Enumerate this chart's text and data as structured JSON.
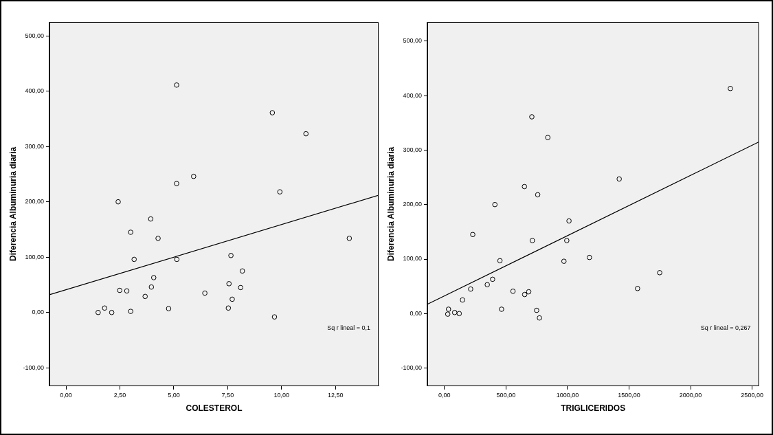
{
  "chart_data": [
    {
      "type": "scatter",
      "xlabel": "COLESTEROL",
      "ylabel": "Diferencia Albuminuria diaria",
      "xlim": [
        -0.77,
        14.5
      ],
      "ylim": [
        -133,
        525
      ],
      "xticks": [
        {
          "value": 0,
          "label": "0,00"
        },
        {
          "value": 2.5,
          "label": "2,50"
        },
        {
          "value": 5,
          "label": "5,00"
        },
        {
          "value": 7.5,
          "label": "7,50"
        },
        {
          "value": 10,
          "label": "10,00"
        },
        {
          "value": 12.5,
          "label": "12,50"
        }
      ],
      "yticks": [
        {
          "value": -100,
          "label": "-100,00"
        },
        {
          "value": 0,
          "label": "0,00"
        },
        {
          "value": 100,
          "label": "100,00"
        },
        {
          "value": 200,
          "label": "200,00"
        },
        {
          "value": 300,
          "label": "300,00"
        },
        {
          "value": 400,
          "label": "400,00"
        },
        {
          "value": 500,
          "label": "500,00"
        }
      ],
      "grid": false,
      "annotations": [
        "Sq r lineal = 0,1"
      ],
      "series": [
        {
          "marker": "circle",
          "color": "#000000",
          "x": [
            5.13,
            9.57,
            11.13,
            2.42,
            3.93,
            5.13,
            5.92,
            9.92,
            3.0,
            4.27,
            3.16,
            5.14,
            13.14,
            7.65,
            8.18,
            7.56,
            8.1,
            7.71,
            7.53,
            6.44,
            9.67,
            4.07,
            3.96,
            3.67,
            2.49,
            2.82,
            4.76,
            3.0,
            1.49,
            1.79,
            2.12
          ],
          "values": [
            411,
            361,
            323,
            200,
            169,
            233,
            246,
            218,
            145,
            134,
            96,
            96,
            134,
            103,
            75,
            52,
            45,
            24,
            8,
            35,
            -8,
            63,
            46,
            29,
            40,
            39,
            7,
            2,
            0,
            8,
            0
          ]
        },
        {
          "type": "line",
          "marker": "none",
          "color": "#000000",
          "x": [
            -0.77,
            14.5
          ],
          "values": [
            32,
            212
          ]
        }
      ]
    },
    {
      "type": "scatter",
      "xlabel": "TRIGLICERIDOS",
      "ylabel": "Diferencia Albuminuria diaria",
      "xlim": [
        -139,
        2555
      ],
      "ylim": [
        -133,
        535
      ],
      "xticks": [
        {
          "value": 0,
          "label": "0,00"
        },
        {
          "value": 500,
          "label": "500,00"
        },
        {
          "value": 1000,
          "label": "1000,00"
        },
        {
          "value": 1500,
          "label": "1500,00"
        },
        {
          "value": 2000,
          "label": "2000,00"
        },
        {
          "value": 2500,
          "label": "2500,00"
        }
      ],
      "yticks": [
        {
          "value": -100,
          "label": "-100,00"
        },
        {
          "value": 0,
          "label": "0,00"
        },
        {
          "value": 100,
          "label": "100,00"
        },
        {
          "value": 200,
          "label": "200,00"
        },
        {
          "value": 300,
          "label": "300,00"
        },
        {
          "value": 400,
          "label": "400,00"
        },
        {
          "value": 500,
          "label": "500,00"
        }
      ],
      "grid": false,
      "annotations": [
        "Sq r lineal = 0,267"
      ],
      "series": [
        {
          "marker": "circle",
          "color": "#000000",
          "x": [
            2323,
            710,
            840,
            1420,
            650,
            758,
            410,
            1012,
            230,
            714,
            994,
            451,
            971,
            1178,
            1749,
            1569,
            391,
            348,
            213,
            147,
            557,
            652,
            685,
            464,
            749,
            772,
            33,
            27,
            83,
            120
          ],
          "values": [
            413,
            361,
            323,
            247,
            233,
            218,
            200,
            170,
            145,
            134,
            134,
            97,
            96,
            103,
            75,
            46,
            63,
            53,
            45,
            25,
            41,
            35,
            40,
            8,
            6,
            -8,
            8,
            -1,
            2,
            0
          ]
        },
        {
          "type": "line",
          "marker": "none",
          "color": "#000000",
          "x": [
            -139,
            2555
          ],
          "values": [
            17,
            315
          ]
        }
      ]
    }
  ]
}
